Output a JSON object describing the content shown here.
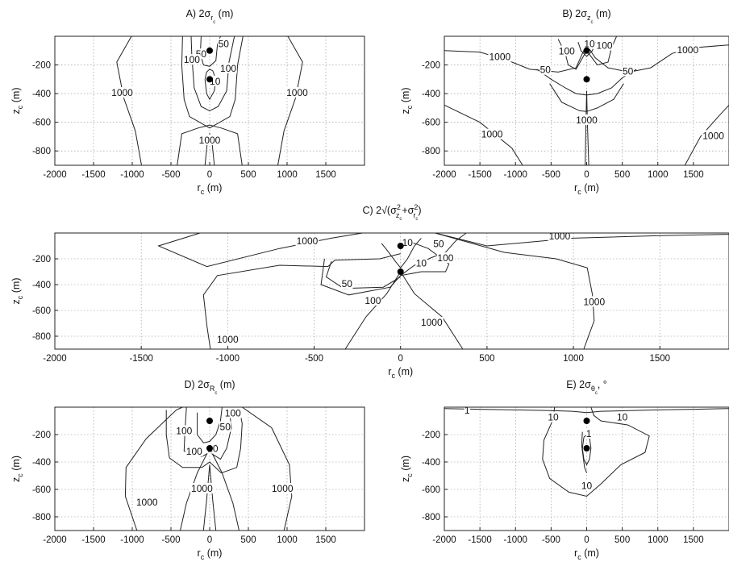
{
  "chart_data": [
    {
      "id": "A",
      "type": "contour",
      "title": "A) 2σ_{r_c} (m)",
      "title_parts": {
        "prefix": "A) 2σ",
        "sub": "r",
        "subsub": "c",
        "suffix": " (m)"
      },
      "xlabel": "r_c (m)",
      "ylabel": "z_c (m)",
      "xlim": [
        -2000,
        2000
      ],
      "ylim": [
        -900,
        0
      ],
      "xticks": [
        -2000,
        -1500,
        -1000,
        -500,
        0,
        500,
        1000,
        1500
      ],
      "yticks": [
        -200,
        -400,
        -600,
        -800
      ],
      "grid": true,
      "stations": [
        [
          0,
          -100
        ],
        [
          0,
          -300
        ]
      ],
      "contour_labels": [
        {
          "text": "1000",
          "x": -1130,
          "y": -400
        },
        {
          "text": "1000",
          "x": 1130,
          "y": -400
        },
        {
          "text": "1000",
          "x": 0,
          "y": -730
        },
        {
          "text": "50",
          "x": -110,
          "y": -130
        },
        {
          "text": "50",
          "x": 180,
          "y": -60
        },
        {
          "text": "100",
          "x": -230,
          "y": -170
        },
        {
          "text": "100",
          "x": 240,
          "y": -230
        },
        {
          "text": "10",
          "x": 70,
          "y": -320
        }
      ]
    },
    {
      "id": "B",
      "type": "contour",
      "title": "B) 2σ_{z_c} (m)",
      "title_parts": {
        "prefix": "B) 2σ",
        "sub": "z",
        "subsub": "c",
        "suffix": " (m)"
      },
      "xlabel": "r_c (m)",
      "ylabel": "z_c (m)",
      "xlim": [
        -2000,
        2000
      ],
      "ylim": [
        -900,
        0
      ],
      "xticks": [
        -2000,
        -1500,
        -1000,
        -500,
        0,
        500,
        1000,
        1500
      ],
      "yticks": [
        -200,
        -400,
        -600,
        -800
      ],
      "grid": true,
      "stations": [
        [
          0,
          -100
        ],
        [
          0,
          -300
        ]
      ],
      "contour_labels": [
        {
          "text": "1000",
          "x": -1220,
          "y": -150
        },
        {
          "text": "1000",
          "x": 1420,
          "y": -100
        },
        {
          "text": "1000",
          "x": -1330,
          "y": -690
        },
        {
          "text": "1000",
          "x": 1780,
          "y": -700
        },
        {
          "text": "1000",
          "x": 0,
          "y": -590
        },
        {
          "text": "100",
          "x": -280,
          "y": -110
        },
        {
          "text": "100",
          "x": 250,
          "y": -70
        },
        {
          "text": "50",
          "x": -580,
          "y": -240
        },
        {
          "text": "50",
          "x": 580,
          "y": -250
        },
        {
          "text": "10",
          "x": 40,
          "y": -60
        }
      ]
    },
    {
      "id": "C",
      "type": "contour",
      "title": "C) 2√(σ_{z_c}^2+σ_{r_c}^2)",
      "xlabel": "r_c (m)",
      "ylabel": "z_c (m)",
      "xlim": [
        -2000,
        1900
      ],
      "ylim": [
        -900,
        0
      ],
      "xticks": [
        -2000,
        -1500,
        -1000,
        -500,
        0,
        500,
        1000,
        1500
      ],
      "yticks": [
        -200,
        -400,
        -600,
        -800
      ],
      "grid": true,
      "stations": [
        [
          0,
          -100
        ],
        [
          0,
          -300
        ]
      ],
      "contour_labels": [
        {
          "text": "1000",
          "x": -540,
          "y": -70
        },
        {
          "text": "1000",
          "x": 920,
          "y": -30
        },
        {
          "text": "1000",
          "x": -1000,
          "y": -830
        },
        {
          "text": "1000",
          "x": 180,
          "y": -700
        },
        {
          "text": "1000",
          "x": 1120,
          "y": -540
        },
        {
          "text": "50",
          "x": -310,
          "y": -400
        },
        {
          "text": "50",
          "x": 220,
          "y": -90
        },
        {
          "text": "100",
          "x": -160,
          "y": -530
        },
        {
          "text": "100",
          "x": 260,
          "y": -200
        },
        {
          "text": "10",
          "x": 40,
          "y": -80
        },
        {
          "text": "10",
          "x": 120,
          "y": -240
        }
      ]
    },
    {
      "id": "D",
      "type": "contour",
      "title": "D) 2σ_{R_c} (m)",
      "title_parts": {
        "prefix": "D) 2σ",
        "sub": "R",
        "subsub": "c",
        "suffix": " (m)"
      },
      "xlabel": "r_c (m)",
      "ylabel": "z_c (m)",
      "xlim": [
        -2000,
        2000
      ],
      "ylim": [
        -900,
        0
      ],
      "xticks": [
        -2000,
        -1500,
        -1000,
        -500,
        0,
        500,
        1000,
        1500
      ],
      "yticks": [
        -200,
        -400,
        -600,
        -800
      ],
      "grid": true,
      "stations": [
        [
          0,
          -100
        ],
        [
          0,
          -300
        ]
      ],
      "contour_labels": [
        {
          "text": "1000",
          "x": -810,
          "y": -700
        },
        {
          "text": "1000",
          "x": -100,
          "y": -600
        },
        {
          "text": "1000",
          "x": 940,
          "y": -600
        },
        {
          "text": "100",
          "x": -330,
          "y": -180
        },
        {
          "text": "100",
          "x": 300,
          "y": -50
        },
        {
          "text": "100",
          "x": -200,
          "y": -330
        },
        {
          "text": "50",
          "x": 200,
          "y": -150
        },
        {
          "text": "10",
          "x": 40,
          "y": -310
        }
      ]
    },
    {
      "id": "E",
      "type": "contour",
      "title": "E) 2σ_{θ_c}, °",
      "title_parts": {
        "prefix": "E) 2σ",
        "sub": "θ",
        "subsub": "c",
        "suffix": ", °"
      },
      "xlabel": "r_c (m)",
      "ylabel": "z_c (m)",
      "xlim": [
        -2000,
        2000
      ],
      "ylim": [
        -900,
        0
      ],
      "xticks": [
        -2000,
        -1500,
        -1000,
        -500,
        0,
        500,
        1000,
        1500
      ],
      "yticks": [
        -200,
        -400,
        -600,
        -800
      ],
      "grid": true,
      "stations": [
        [
          0,
          -100
        ],
        [
          0,
          -300
        ]
      ],
      "contour_labels": [
        {
          "text": "10",
          "x": -470,
          "y": -80
        },
        {
          "text": "10",
          "x": 500,
          "y": -80
        },
        {
          "text": "1",
          "x": 30,
          "y": -200
        },
        {
          "text": "1",
          "x": -1680,
          "y": -30
        },
        {
          "text": "10",
          "x": 0,
          "y": -580
        }
      ]
    }
  ]
}
